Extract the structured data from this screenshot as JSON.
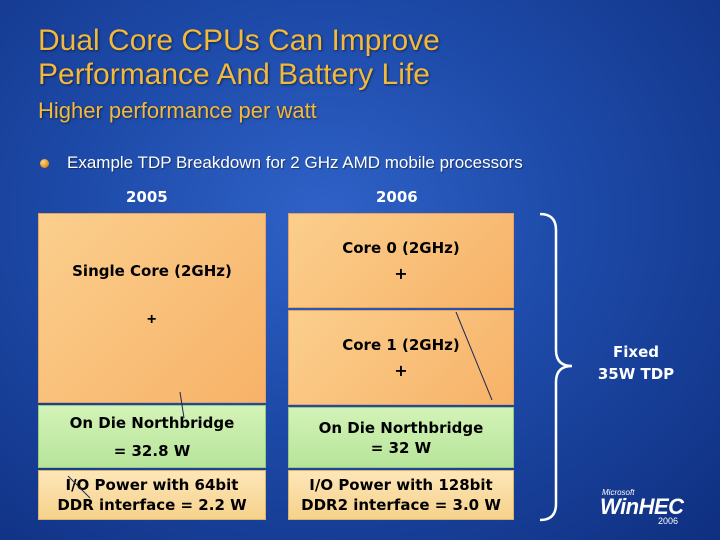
{
  "slide": {
    "title_line1": "Dual Core CPUs Can Improve",
    "title_line2": "Performance And Battery Life",
    "subtitle": "Higher performance per watt",
    "bullet": "Example TDP Breakdown for 2 GHz AMD mobile processors"
  },
  "columns": {
    "left_year": "2005",
    "right_year": "2006"
  },
  "col_2005": {
    "single_core": "Single Core (2GHz)",
    "plus": "+",
    "northbridge_line1": "On Die Northbridge",
    "northbridge_line2": "= 32.8 W",
    "io_line1": "I/O Power with 64bit",
    "io_line2": "DDR interface = 2.2 W"
  },
  "col_2006": {
    "core0": "Core 0 (2GHz)",
    "core0_plus": "+",
    "core1": "Core 1 (2GHz)",
    "core1_plus": "+",
    "northbridge_line1": "On Die Northbridge",
    "northbridge_line2": "= 32 W",
    "io_line1": "I/O Power with 128bit",
    "io_line2": "DDR2 interface = 3.0 W"
  },
  "bracket": {
    "line1": "Fixed",
    "line2": "35W TDP"
  },
  "logo": {
    "microsoft": "Microsoft",
    "name": "WinHEC",
    "year": "2006"
  },
  "colors": {
    "title": "#f3b93a",
    "background": "#1d4aa8",
    "core_box": "#f7b268",
    "northbridge_box": "#b7e49a",
    "io_box": "#f6d28c"
  }
}
